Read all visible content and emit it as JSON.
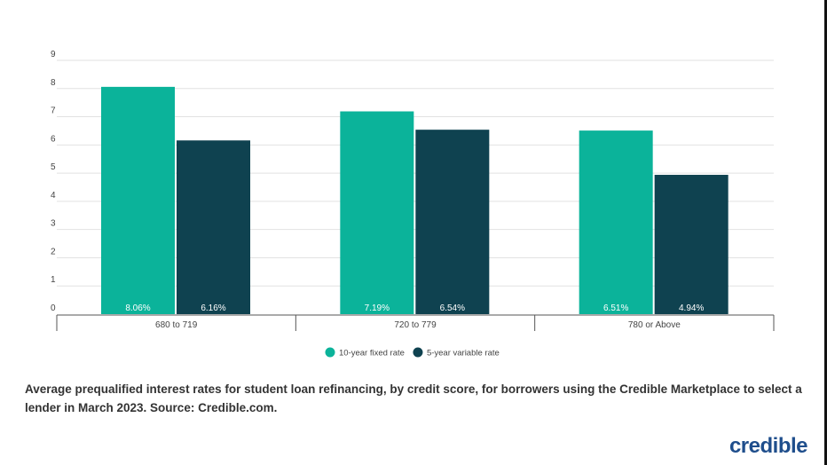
{
  "chart_data": {
    "type": "bar",
    "title": "",
    "xlabel": "",
    "ylabel": "",
    "categories": [
      "680 to 719",
      "720 to 779",
      "780 or Above"
    ],
    "series": [
      {
        "name": "10-year fixed rate",
        "values": [
          8.06,
          7.19,
          6.51
        ],
        "labels": [
          "8.06%",
          "7.19%",
          "6.51%"
        ],
        "color": "#0bb39a"
      },
      {
        "name": "5-year variable rate",
        "values": [
          6.16,
          6.54,
          4.94
        ],
        "labels": [
          "6.16%",
          "6.54%",
          "4.94%"
        ],
        "color": "#0f4250"
      }
    ],
    "ylim": [
      0,
      9
    ],
    "yticks": [
      "0",
      "1",
      "2",
      "3",
      "4",
      "5",
      "6",
      "7",
      "8",
      "9"
    ],
    "grid": true,
    "legend": "bottom"
  },
  "caption": "Average prequalified interest rates for student loan refinancing, by credit score, for borrowers using the Credible Marketplace to select a lender in March 2023. Source: Credible.com.",
  "logo": "credible"
}
